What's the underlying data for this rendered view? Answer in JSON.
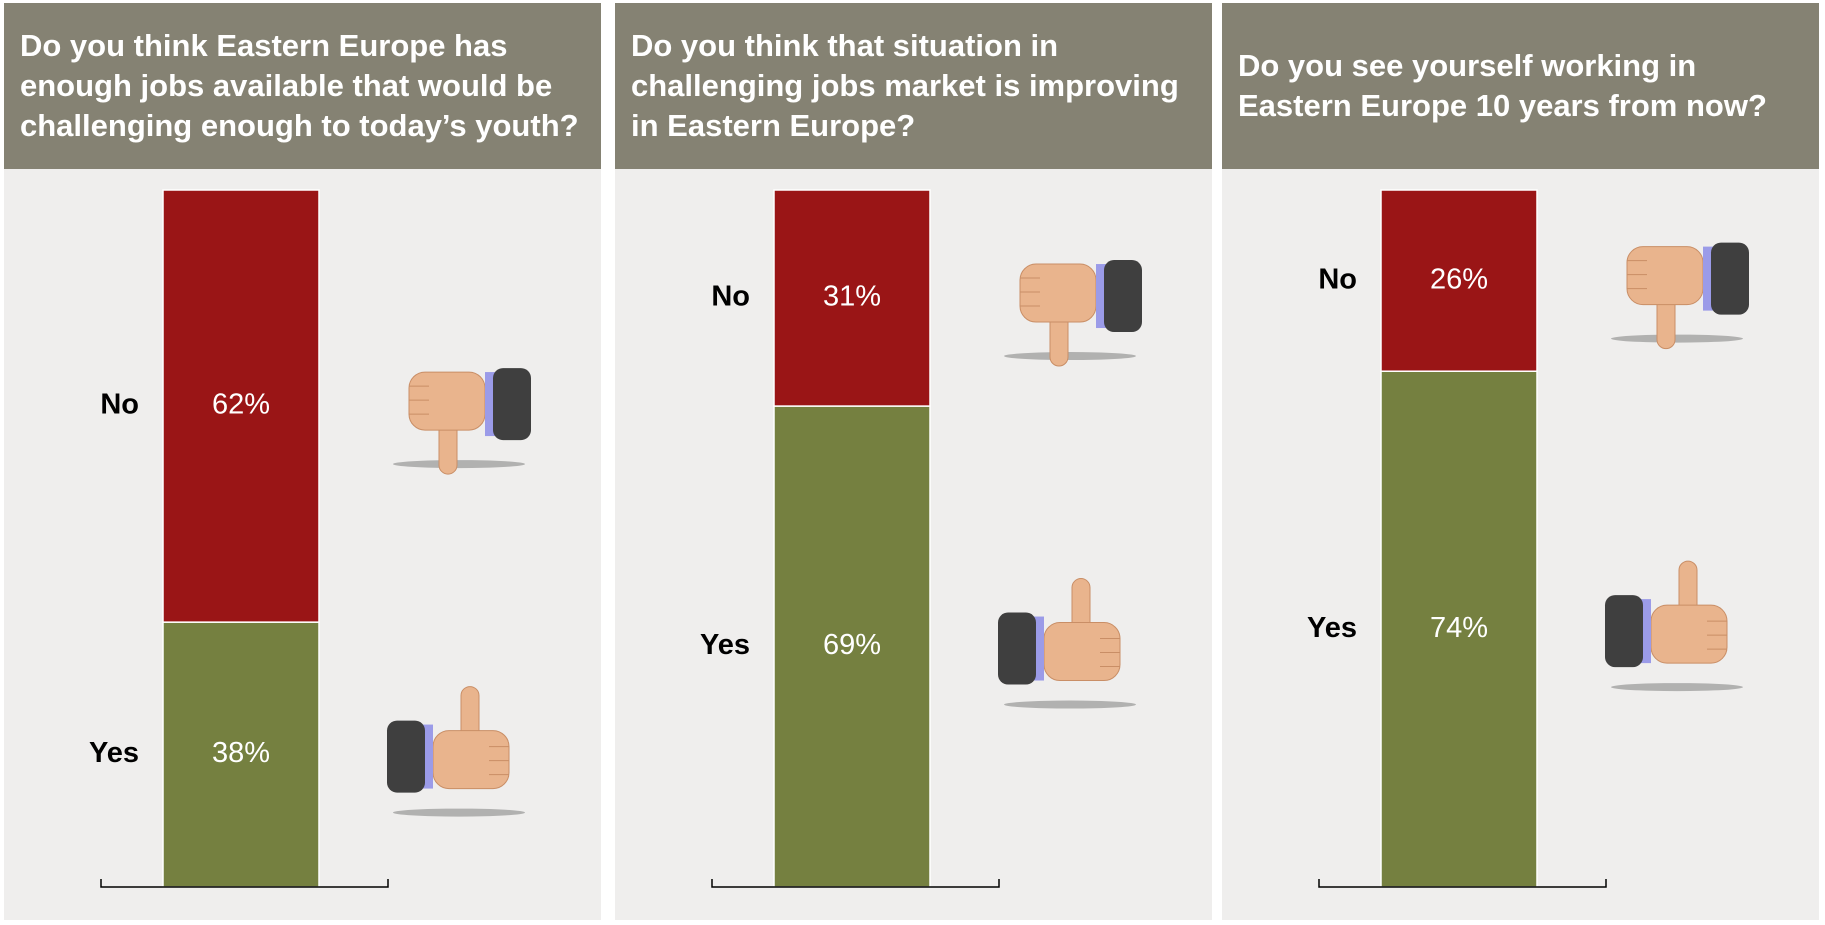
{
  "chart_data": [
    {
      "type": "stacked-bar",
      "title": "Do you think Eastern Europe has enough jobs available that would be challenging enough to today’s youth?",
      "ylim": [
        0,
        100
      ],
      "series": [
        {
          "name": "Yes",
          "color": "#758040",
          "values": [
            38
          ],
          "value_labels": [
            "38%"
          ]
        },
        {
          "name": "No",
          "color": "#9a1516",
          "values": [
            62
          ],
          "value_labels": [
            "62%"
          ]
        }
      ]
    },
    {
      "type": "stacked-bar",
      "title": "Do you think that situation in challenging jobs market is improving in Eastern Europe?",
      "ylim": [
        0,
        100
      ],
      "series": [
        {
          "name": "Yes",
          "color": "#758040",
          "values": [
            69
          ],
          "value_labels": [
            "69%"
          ]
        },
        {
          "name": "No",
          "color": "#9a1516",
          "values": [
            31
          ],
          "value_labels": [
            "31%"
          ]
        }
      ]
    },
    {
      "type": "stacked-bar",
      "title": "Do you see yourself working in Eastern Europe 10 years from now?",
      "ylim": [
        0,
        100
      ],
      "series": [
        {
          "name": "Yes",
          "color": "#758040",
          "values": [
            74
          ],
          "value_labels": [
            "74%"
          ]
        },
        {
          "name": "No",
          "color": "#9a1516",
          "values": [
            26
          ],
          "value_labels": [
            "26%"
          ]
        }
      ]
    }
  ]
}
